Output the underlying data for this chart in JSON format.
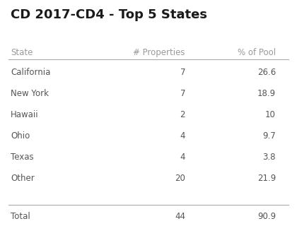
{
  "title": "CD 2017-CD4 - Top 5 States",
  "columns": [
    "State",
    "# Properties",
    "% of Pool"
  ],
  "rows": [
    [
      "California",
      "7",
      "26.6"
    ],
    [
      "New York",
      "7",
      "18.9"
    ],
    [
      "Hawaii",
      "2",
      "10"
    ],
    [
      "Ohio",
      "4",
      "9.7"
    ],
    [
      "Texas",
      "4",
      "3.8"
    ],
    [
      "Other",
      "20",
      "21.9"
    ]
  ],
  "total_row": [
    "Total",
    "44",
    "90.9"
  ],
  "bg_color": "#ffffff",
  "title_fontsize": 13,
  "header_fontsize": 8.5,
  "data_fontsize": 8.5,
  "total_fontsize": 8.5,
  "header_color": "#999999",
  "data_color": "#555555",
  "title_color": "#1a1a1a",
  "line_color": "#aaaaaa"
}
